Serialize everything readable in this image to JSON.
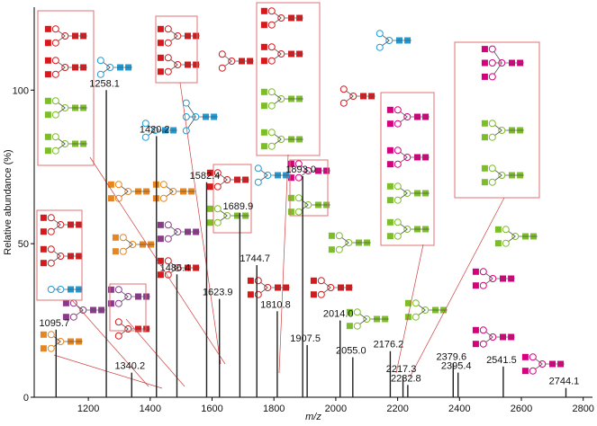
{
  "chart_data": {
    "type": "stem",
    "xlabel": "m/z",
    "ylabel": "Relative abundance (%)",
    "x": [
      1095.7,
      1258.1,
      1340.2,
      1420.2,
      1486.4,
      1582.4,
      1623.9,
      1689.9,
      1744.7,
      1810.8,
      1893.0,
      1907.5,
      2014.0,
      2055.0,
      2176.2,
      2217.3,
      2232.8,
      2379.6,
      2395.4,
      2541.5,
      2744.1
    ],
    "labels": [
      "1095.7",
      "1258.1",
      "1340.2",
      "1420.2",
      "1486.4",
      "1582.4",
      "1623.9",
      "1689.9",
      "1744.7",
      "1810.8",
      "1893.0",
      "1907.5",
      "2014.0",
      "2055.0",
      "2176.2",
      "2217.3",
      "2232.8",
      "2379.6",
      "2395.4",
      "2541.5",
      "2744.1"
    ],
    "values": [
      22,
      100,
      8,
      85,
      40,
      70,
      32,
      60,
      43,
      28,
      72,
      17,
      25,
      13,
      15,
      7,
      4,
      11,
      8,
      10,
      3
    ],
    "color": "#222222",
    "xlim": [
      1025,
      2830
    ],
    "xticks": [
      1200,
      1400,
      1600,
      1800,
      2000,
      2200,
      2400,
      2600,
      2800
    ],
    "ylim": [
      0,
      127
    ],
    "yticks": [
      0,
      50,
      100
    ]
  }
}
